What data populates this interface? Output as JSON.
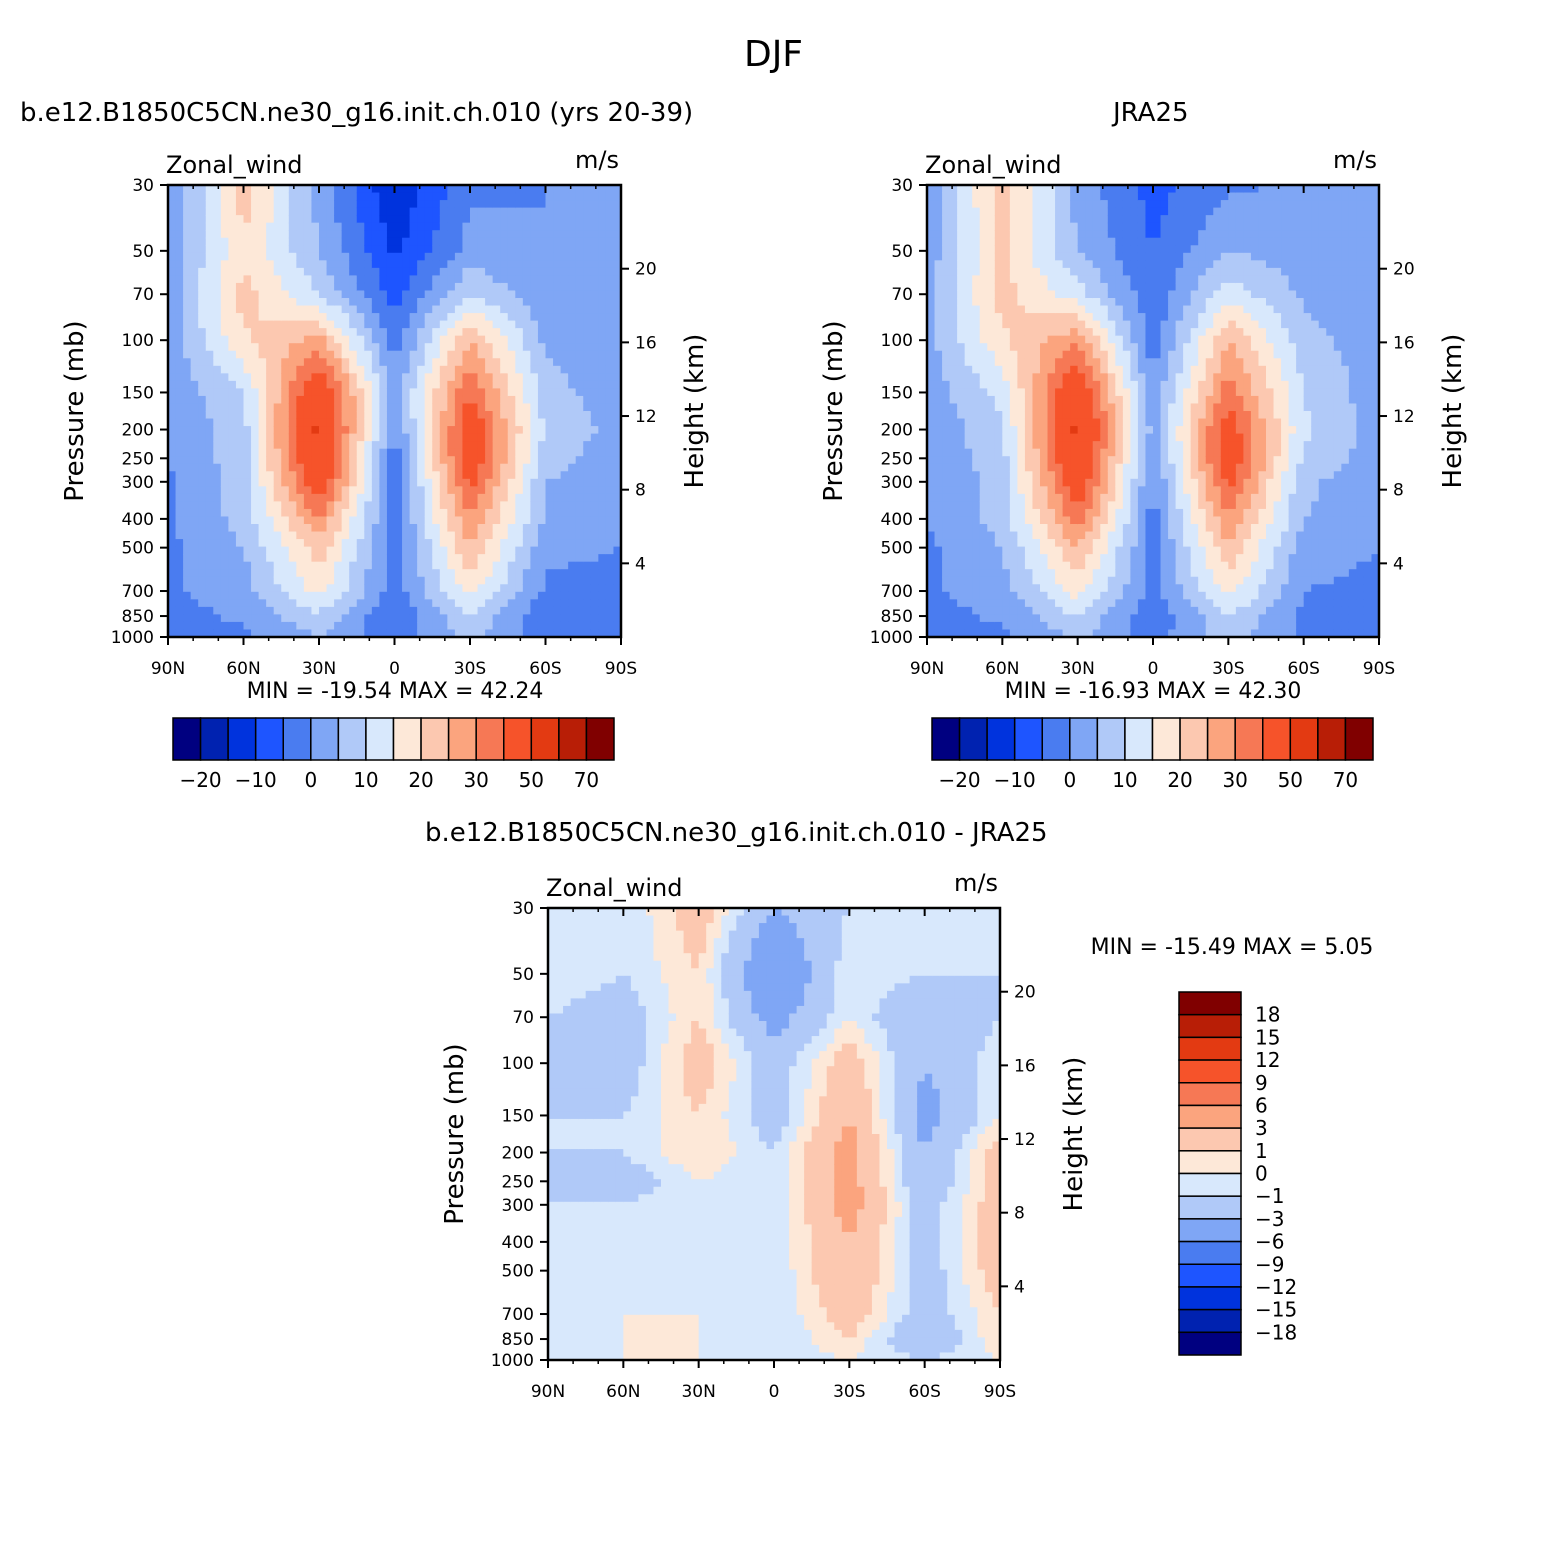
{
  "title": "DJF",
  "panels": [
    {
      "id": "p1",
      "title": "b.e12.B1850C5CN.ne30_g16.init.ch.010 (yrs 20-39)",
      "left_label": "Zonal_wind",
      "right_label": "m/s",
      "min_max": "MIN = -19.54   MAX =   42.24"
    },
    {
      "id": "p2",
      "title": "JRA25",
      "left_label": "Zonal_wind",
      "right_label": "m/s",
      "min_max": "MIN = -16.93   MAX =   42.30"
    },
    {
      "id": "p3",
      "title": "b.e12.B1850C5CN.ne30_g16.init.ch.010 - JRA25",
      "left_label": "Zonal_wind",
      "right_label": "m/s",
      "min_max": "MIN = -15.49   MAX =    5.05"
    }
  ],
  "axes": {
    "ylabel": "Pressure (mb)",
    "y2label": "Height (km)",
    "pressure_ticks": [
      "30",
      "50",
      "70",
      "100",
      "150",
      "200",
      "250",
      "300",
      "400",
      "500",
      "700",
      "850",
      "1000"
    ],
    "height_ticks": [
      "4",
      "8",
      "12",
      "16",
      "20"
    ],
    "lat_ticks": [
      "90N",
      "60N",
      "30N",
      "0",
      "30S",
      "60S",
      "90S"
    ]
  },
  "colors": {
    "field_levels": [
      "#000080",
      "#0022b0",
      "#0033dd",
      "#1e55ff",
      "#4a7cf0",
      "#7fa6f5",
      "#b0c9f8",
      "#d8e8fc",
      "#fde8d8",
      "#fcc8b0",
      "#fba47e",
      "#f67855",
      "#f6532a",
      "#e33a12",
      "#b81e06",
      "#800000"
    ],
    "diff_levels": [
      "#000080",
      "#0022b0",
      "#0033dd",
      "#1e55ff",
      "#4a7cf0",
      "#7fa6f5",
      "#b0c9f8",
      "#d8e8fc",
      "#fde8d8",
      "#fcc8b0",
      "#fba47e",
      "#f67855",
      "#f6532a",
      "#e33a12",
      "#b81e06",
      "#800000"
    ]
  },
  "colorbar_field_labels": [
    "-20",
    "-10",
    "0",
    "10",
    "20",
    "30",
    "50",
    "70"
  ],
  "colorbar_diff_labels": [
    "18",
    "15",
    "12",
    "9",
    "6",
    "3",
    "1",
    "0",
    "-1",
    "-3",
    "-6",
    "-9",
    "-12",
    "-15",
    "-18"
  ],
  "chart_data": [
    {
      "type": "heatmap",
      "title": "b.e12.B1850C5CN.ne30_g16.init.ch.010 (yrs 20-39)",
      "xlabel": "",
      "ylabel": "Pressure (mb)",
      "y2label": "Height (km)",
      "x": [
        90,
        60,
        30,
        0,
        -30,
        -60,
        -90
      ],
      "y": [
        30,
        50,
        70,
        100,
        150,
        200,
        250,
        300,
        400,
        500,
        700,
        850,
        1000
      ],
      "levels": [
        -25,
        -20,
        -15,
        -10,
        -5,
        0,
        5,
        10,
        15,
        20,
        25,
        30,
        40,
        50,
        60,
        70
      ],
      "z": [
        [
          -6,
          18,
          -2,
          -20,
          -6,
          -5,
          -5
        ],
        [
          -4,
          14,
          0,
          -16,
          -3,
          -5,
          -4
        ],
        [
          -3,
          17,
          5,
          -12,
          5,
          -4,
          -4
        ],
        [
          -3,
          14,
          22,
          -8,
          20,
          -1,
          -3
        ],
        [
          -4,
          5,
          38,
          -2,
          30,
          2,
          -3
        ],
        [
          -5,
          3,
          42,
          -6,
          36,
          4,
          -2
        ],
        [
          -5,
          3,
          40,
          -8,
          36,
          2,
          -3
        ],
        [
          -6,
          2,
          36,
          -9,
          32,
          0,
          -3
        ],
        [
          -6,
          2,
          25,
          -8,
          25,
          -1,
          -3
        ],
        [
          -6,
          0,
          18,
          -8,
          20,
          -4,
          -5
        ],
        [
          -6,
          -2,
          12,
          -8,
          12,
          -6,
          -6
        ],
        [
          -7,
          -4,
          4,
          -10,
          5,
          -9,
          -6
        ],
        [
          -8,
          -6,
          0,
          -8,
          1,
          -7,
          -6
        ]
      ],
      "min": -19.54,
      "max": 42.24,
      "units": "m/s"
    },
    {
      "type": "heatmap",
      "title": "JRA25",
      "xlabel": "",
      "ylabel": "Pressure (mb)",
      "y2label": "Height (km)",
      "x": [
        90,
        60,
        30,
        0,
        -30,
        -60,
        -90
      ],
      "y": [
        30,
        50,
        70,
        100,
        150,
        200,
        250,
        300,
        400,
        500,
        700,
        850,
        1000
      ],
      "levels": [
        -25,
        -20,
        -15,
        -10,
        -5,
        0,
        5,
        10,
        15,
        20,
        25,
        30,
        40,
        50,
        60,
        70
      ],
      "z": [
        [
          -4,
          18,
          -2,
          -12,
          -6,
          -4,
          -5
        ],
        [
          -3,
          16,
          0,
          -10,
          0,
          -3,
          -4
        ],
        [
          -2,
          17,
          7,
          -9,
          8,
          -1,
          -3
        ],
        [
          -2,
          14,
          24,
          -8,
          20,
          2,
          -3
        ],
        [
          -3,
          7,
          38,
          -4,
          28,
          5,
          -3
        ],
        [
          -4,
          4,
          42,
          -2,
          34,
          6,
          -2
        ],
        [
          -4,
          3,
          40,
          -5,
          36,
          4,
          -3
        ],
        [
          -5,
          2,
          36,
          -6,
          32,
          1,
          -3
        ],
        [
          -5,
          2,
          28,
          -7,
          25,
          0,
          -3
        ],
        [
          -6,
          0,
          20,
          -7,
          19,
          -3,
          -5
        ],
        [
          -6,
          -2,
          12,
          -7,
          12,
          -5,
          -6
        ],
        [
          -7,
          -4,
          5,
          -9,
          5,
          -6,
          -6
        ],
        [
          -8,
          -6,
          1,
          -7,
          2,
          -6,
          -6
        ]
      ],
      "min": -16.93,
      "max": 42.3,
      "units": "m/s"
    },
    {
      "type": "heatmap",
      "title": "b.e12.B1850C5CN.ne30_g16.init.ch.010 - JRA25",
      "xlabel": "",
      "ylabel": "Pressure (mb)",
      "y2label": "Height (km)",
      "x": [
        90,
        60,
        30,
        0,
        -30,
        -60,
        -90
      ],
      "y": [
        30,
        50,
        70,
        100,
        150,
        200,
        250,
        300,
        400,
        500,
        700,
        850,
        1000
      ],
      "levels": [
        -18,
        -15,
        -12,
        -9,
        -6,
        -3,
        -1,
        0,
        1,
        3,
        6,
        9,
        12,
        15,
        18
      ],
      "z": [
        [
          -1,
          -1,
          2,
          -3,
          -1,
          -1,
          -1
        ],
        [
          0,
          -1,
          1,
          -6,
          0,
          -1,
          -1
        ],
        [
          -1,
          -2,
          1,
          -4,
          0,
          -3,
          -1
        ],
        [
          -1,
          -2,
          2,
          -2,
          2,
          -3,
          0
        ],
        [
          -1,
          -1,
          1,
          -2,
          3,
          -4,
          0
        ],
        [
          -1,
          -1,
          1,
          -1,
          4,
          -3,
          2
        ],
        [
          -1,
          -2,
          0,
          -1,
          4,
          -3,
          2
        ],
        [
          -1,
          -1,
          0,
          -1,
          4,
          -2,
          2
        ],
        [
          -1,
          0,
          0,
          -1,
          3,
          -2,
          2
        ],
        [
          -1,
          -1,
          0,
          -1,
          3,
          -2,
          2
        ],
        [
          -1,
          0,
          0,
          -1,
          2,
          -2,
          1
        ],
        [
          0,
          0,
          0,
          -1,
          1,
          -3,
          1
        ],
        [
          -1,
          0,
          0,
          -1,
          0,
          -1,
          0
        ]
      ],
      "min": -15.49,
      "max": 5.05,
      "units": "m/s"
    }
  ]
}
